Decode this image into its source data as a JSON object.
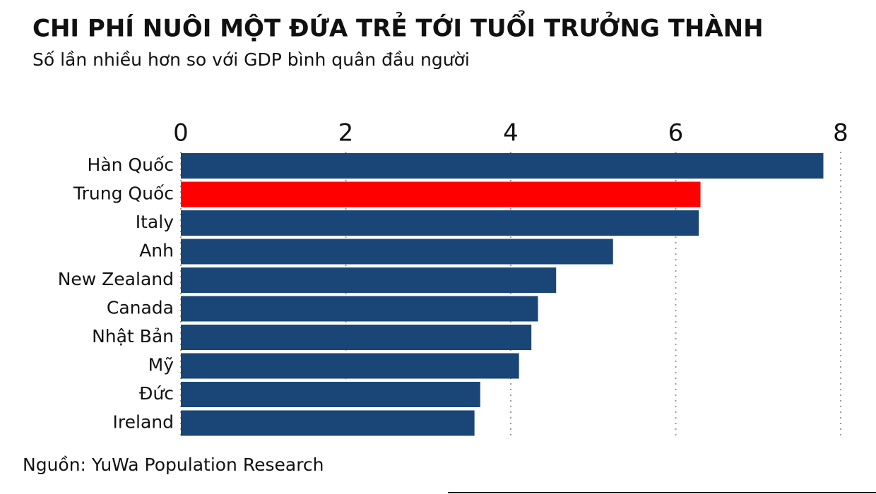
{
  "chart_data": {
    "type": "bar",
    "orientation": "horizontal",
    "title": "CHI PHÍ NUÔI MỘT ĐỨA TRẺ TỚI TUỔI TRƯỞNG THÀNH",
    "subtitle": "Số lần nhiều hơn so với GDP bình quân đầu người",
    "source": "Nguồn: YuWa Population Research",
    "categories": [
      "Hàn Quốc",
      "Trung Quốc",
      "Italy",
      "Anh",
      "New Zealand",
      "Canada",
      "Nhật Bản",
      "Mỹ",
      "Đức",
      "Ireland"
    ],
    "values": [
      7.79,
      6.3,
      6.28,
      5.24,
      4.55,
      4.33,
      4.25,
      4.1,
      3.63,
      3.56
    ],
    "colors": [
      "#1a4677",
      "#ff0000",
      "#1a4677",
      "#1a4677",
      "#1a4677",
      "#1a4677",
      "#1a4677",
      "#1a4677",
      "#1a4677",
      "#1a4677"
    ],
    "xlim": [
      0,
      8
    ],
    "xticks": [
      0,
      2,
      4,
      6,
      8
    ],
    "grid": true
  }
}
